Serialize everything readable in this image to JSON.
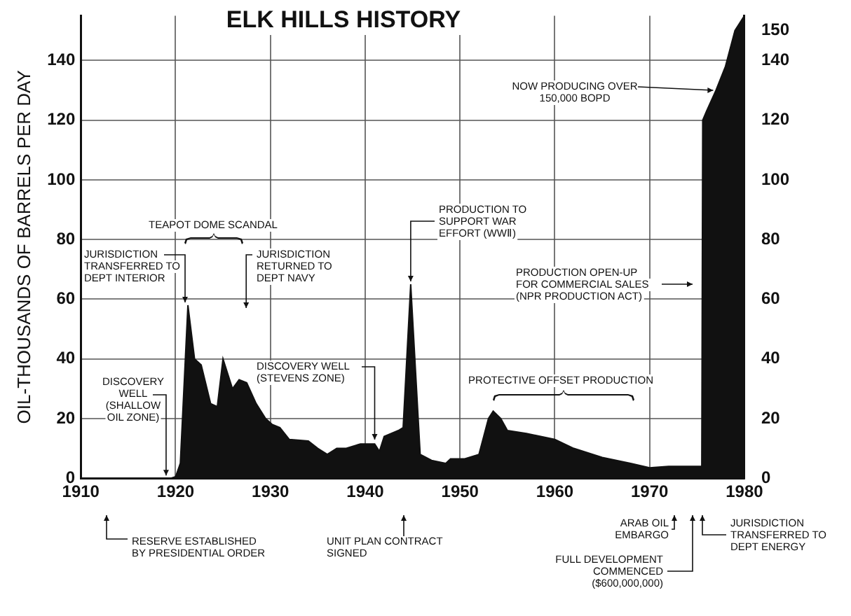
{
  "chart_data": {
    "type": "area",
    "title": "ELK HILLS HISTORY",
    "ylabel": "OIL-THOUSANDS OF BARRELS PER DAY",
    "x": [
      1910,
      1919.5,
      1920,
      1920.5,
      1921.3,
      1922,
      1922.7,
      1923.7,
      1924.4,
      1925,
      1926,
      1926.7,
      1927.5,
      1928.5,
      1929.5,
      1930.2,
      1931,
      1932,
      1934,
      1935,
      1936,
      1937,
      1938,
      1939.5,
      1941,
      1941.5,
      1942,
      1943.5,
      1944,
      1944.8,
      1945.8,
      1947,
      1948.5,
      1949,
      1950.5,
      1952,
      1952.5,
      1953,
      1953.5,
      1954.3,
      1955,
      1957,
      1960,
      1962,
      1965,
      1968,
      1970,
      1972,
      1975.5,
      1975.6,
      1976,
      1977,
      1978,
      1979,
      1980
    ],
    "series": [
      {
        "color": "#111111",
        "values": [
          0,
          0,
          0.5,
          5,
          58,
          40,
          38,
          25,
          24,
          40,
          30,
          33,
          32,
          25,
          20,
          18,
          17,
          13,
          12.5,
          10,
          8,
          10,
          10,
          11.5,
          11.5,
          9,
          14,
          16,
          17,
          65,
          8,
          6,
          5,
          6.5,
          6.5,
          8,
          14,
          20,
          22.5,
          20,
          16,
          15,
          13,
          10,
          7,
          5,
          3.5,
          4,
          4,
          120,
          123,
          130,
          138,
          150,
          155
        ]
      }
    ],
    "xlim": [
      1910,
      1980
    ],
    "xticks": [
      1910,
      1920,
      1930,
      1940,
      1950,
      1960,
      1970,
      1980
    ],
    "ylim": [
      0,
      155
    ],
    "yticks": [
      0,
      20,
      40,
      60,
      80,
      100,
      120,
      140
    ],
    "y2lim": [
      0,
      155
    ],
    "y2ticks": [
      0,
      20,
      40,
      60,
      80,
      100,
      120,
      140,
      150
    ],
    "grid": true,
    "annotations": [
      {
        "text": "DISCOVERY\nWELL\n(SHALLOW\nOIL ZONE)",
        "x": 1919,
        "y": 0
      },
      {
        "text": "JURISDICTION\nTRANSFERRED TO\nDEPT INTERIOR",
        "x": 1921,
        "y": 58
      },
      "TEAPOT DOME SCANDAL",
      "JURISDICTION\nRETURNED TO\nDEPT NAVY",
      {
        "text": "DISCOVERY WELL\n(STEVENS ZONE)",
        "x": 1941,
        "y": 12
      },
      {
        "text": "PRODUCTION TO\nSUPPORT WAR\nEFFORT (WWⅡ)",
        "x": 1944.8,
        "y": 65
      },
      "PROTECTIVE OFFSET PRODUCTION",
      "PRODUCTION OPEN-UP\nFOR COMMERCIAL SALES\n(NPR PRODUCTION ACT)",
      {
        "text": "NOW PRODUCING OVER\n150,000 BOPD",
        "x": 1977,
        "y": 130
      },
      "RESERVE ESTABLISHED\nBY PRESIDENTIAL ORDER",
      "UNIT PLAN CONTRACT\nSIGNED",
      "ARAB OIL\nEMBARGO",
      "FULL DEVELOPMENT\nCOMMENCED\n($600,000,000)",
      "JURISDICTION\nTRANSFERRED TO\nDEPT ENERGY"
    ]
  }
}
